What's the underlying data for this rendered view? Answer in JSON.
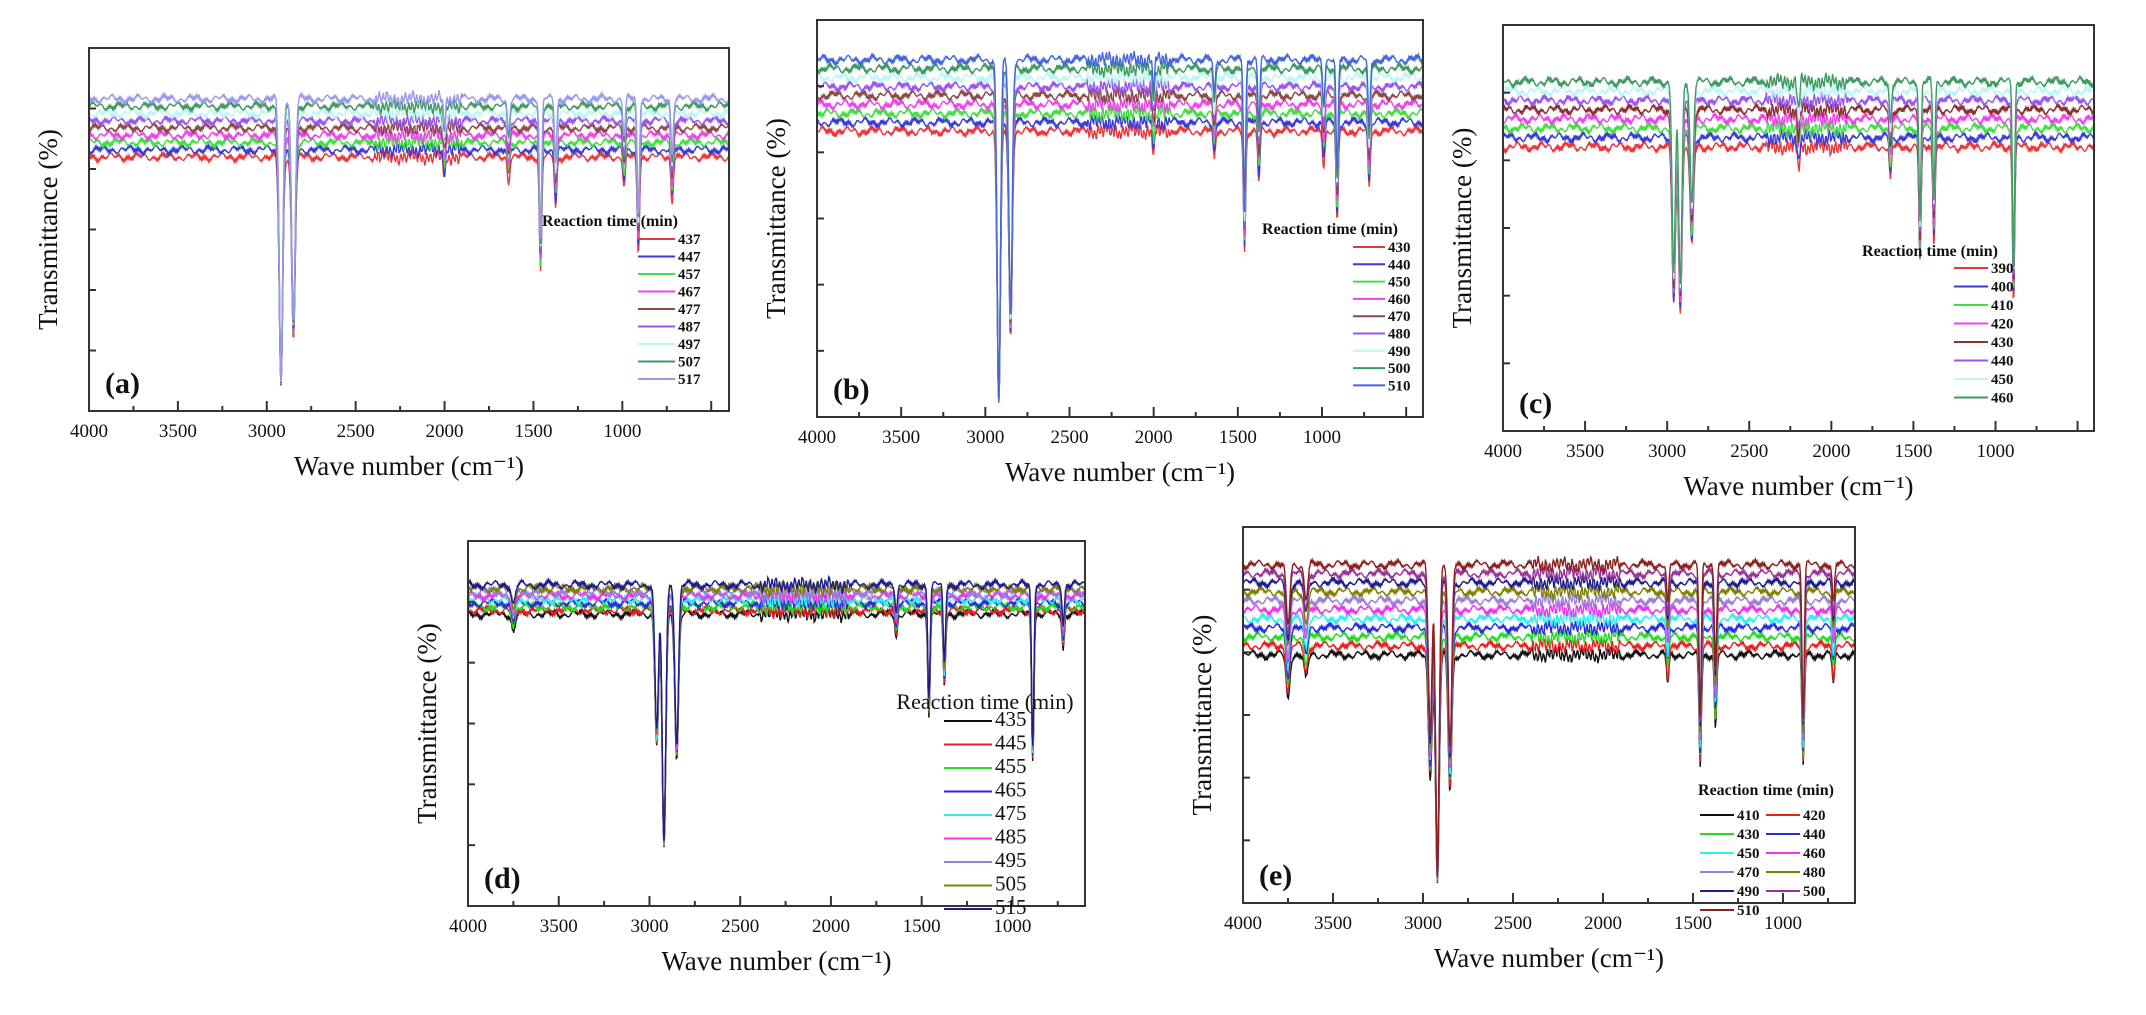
{
  "chart_data": [
    {
      "type": "line",
      "panel_label": "(a)",
      "xlabel": "Wave number (cm⁻¹)",
      "ylabel": "Transmittance (%)",
      "xlim": [
        4000,
        400
      ],
      "x_ticks": [
        4000,
        3500,
        3000,
        2500,
        2000,
        1500,
        1000
      ],
      "y_tick_labels": "none",
      "grid": false,
      "legend_title": "Reaction time (min)",
      "legend_position": "right",
      "series": [
        {
          "name": "437",
          "color": "#e8383a"
        },
        {
          "name": "447",
          "color": "#3a3ad8"
        },
        {
          "name": "457",
          "color": "#44dd44"
        },
        {
          "name": "467",
          "color": "#ee44ee"
        },
        {
          "name": "477",
          "color": "#8b4a4a"
        },
        {
          "name": "487",
          "color": "#9955ee"
        },
        {
          "name": "497",
          "color": "#bff5f5"
        },
        {
          "name": "507",
          "color": "#3f9a5f"
        },
        {
          "name": "517",
          "color": "#9999ee"
        }
      ],
      "absorption_bands": [
        {
          "wavenumber": 2920,
          "relative_depth": 0.9
        },
        {
          "wavenumber": 2850,
          "relative_depth": 0.72
        },
        {
          "wavenumber": 2000,
          "relative_depth": 0.08
        },
        {
          "wavenumber": 1640,
          "relative_depth": 0.1
        },
        {
          "wavenumber": 1460,
          "relative_depth": 0.45
        },
        {
          "wavenumber": 1375,
          "relative_depth": 0.2
        },
        {
          "wavenumber": 990,
          "relative_depth": 0.12
        },
        {
          "wavenumber": 910,
          "relative_depth": 0.38
        },
        {
          "wavenumber": 720,
          "relative_depth": 0.18
        }
      ]
    },
    {
      "type": "line",
      "panel_label": "(b)",
      "xlabel": "Wave number (cm⁻¹)",
      "ylabel": "Transmittance (%)",
      "xlim": [
        4000,
        400
      ],
      "x_ticks": [
        4000,
        3500,
        3000,
        2500,
        2000,
        1500,
        1000
      ],
      "y_tick_labels": "none",
      "grid": false,
      "legend_title": "Reaction time (min)",
      "legend_position": "right",
      "series": [
        {
          "name": "430",
          "color": "#e8383a"
        },
        {
          "name": "440",
          "color": "#3a3ad8"
        },
        {
          "name": "450",
          "color": "#44dd44"
        },
        {
          "name": "460",
          "color": "#ee44ee"
        },
        {
          "name": "470",
          "color": "#8b4a4a"
        },
        {
          "name": "480",
          "color": "#9955ee"
        },
        {
          "name": "490",
          "color": "#bff5f5"
        },
        {
          "name": "500",
          "color": "#3f9a5f"
        },
        {
          "name": "510",
          "color": "#4466dd"
        }
      ],
      "absorption_bands": [
        {
          "wavenumber": 2920,
          "relative_depth": 0.95
        },
        {
          "wavenumber": 2850,
          "relative_depth": 0.72
        },
        {
          "wavenumber": 2000,
          "relative_depth": 0.08
        },
        {
          "wavenumber": 1640,
          "relative_depth": 0.1
        },
        {
          "wavenumber": 1460,
          "relative_depth": 0.42
        },
        {
          "wavenumber": 1375,
          "relative_depth": 0.18
        },
        {
          "wavenumber": 990,
          "relative_depth": 0.12
        },
        {
          "wavenumber": 910,
          "relative_depth": 0.32
        },
        {
          "wavenumber": 720,
          "relative_depth": 0.2
        }
      ]
    },
    {
      "type": "line",
      "panel_label": "(c)",
      "xlabel": "Wave number (cm⁻¹)",
      "ylabel": "Transmittance (%)",
      "xlim": [
        4000,
        400
      ],
      "x_ticks": [
        4000,
        3500,
        3000,
        2500,
        2000,
        1500,
        1000
      ],
      "y_tick_labels": "none",
      "grid": false,
      "legend_title": "Reaction time (min)",
      "legend_position": "right",
      "series": [
        {
          "name": "390",
          "color": "#e8383a"
        },
        {
          "name": "400",
          "color": "#3a3ad8"
        },
        {
          "name": "410",
          "color": "#44dd44"
        },
        {
          "name": "420",
          "color": "#ee44ee"
        },
        {
          "name": "430",
          "color": "#8b3030"
        },
        {
          "name": "440",
          "color": "#9955ee"
        },
        {
          "name": "450",
          "color": "#bff5f5"
        },
        {
          "name": "460",
          "color": "#3f9a5f"
        }
      ],
      "absorption_bands": [
        {
          "wavenumber": 2960,
          "relative_depth": 0.55
        },
        {
          "wavenumber": 2920,
          "relative_depth": 0.58
        },
        {
          "wavenumber": 2850,
          "relative_depth": 0.35
        },
        {
          "wavenumber": 2200,
          "relative_depth": 0.08
        },
        {
          "wavenumber": 1640,
          "relative_depth": 0.12
        },
        {
          "wavenumber": 1460,
          "relative_depth": 0.4
        },
        {
          "wavenumber": 1375,
          "relative_depth": 0.34
        },
        {
          "wavenumber": 890,
          "relative_depth": 0.55
        }
      ]
    },
    {
      "type": "line",
      "panel_label": "(d)",
      "xlabel": "Wave number (cm⁻¹)",
      "ylabel": "Transmittance (%)",
      "xlim": [
        4000,
        600
      ],
      "x_ticks": [
        4000,
        3500,
        3000,
        2500,
        2000,
        1500,
        1000
      ],
      "y_tick_labels": "none",
      "grid": false,
      "legend_title": "Reaction time (min)",
      "legend_position": "right",
      "series": [
        {
          "name": "435",
          "color": "#111111"
        },
        {
          "name": "445",
          "color": "#e82020"
        },
        {
          "name": "455",
          "color": "#22dd22"
        },
        {
          "name": "465",
          "color": "#2a2add"
        },
        {
          "name": "475",
          "color": "#33eeee"
        },
        {
          "name": "485",
          "color": "#ee33ee"
        },
        {
          "name": "495",
          "color": "#9a7fd6"
        },
        {
          "name": "505",
          "color": "#808000"
        },
        {
          "name": "515",
          "color": "#1c1c8c"
        }
      ],
      "absorption_bands": [
        {
          "wavenumber": 3750,
          "relative_depth": 0.06
        },
        {
          "wavenumber": 2960,
          "relative_depth": 0.45
        },
        {
          "wavenumber": 2920,
          "relative_depth": 0.8
        },
        {
          "wavenumber": 2850,
          "relative_depth": 0.5
        },
        {
          "wavenumber": 1640,
          "relative_depth": 0.08
        },
        {
          "wavenumber": 1460,
          "relative_depth": 0.35
        },
        {
          "wavenumber": 1375,
          "relative_depth": 0.25
        },
        {
          "wavenumber": 888,
          "relative_depth": 0.5
        },
        {
          "wavenumber": 720,
          "relative_depth": 0.12
        }
      ]
    },
    {
      "type": "line",
      "panel_label": "(e)",
      "xlabel": "Wave number (cm⁻¹)",
      "ylabel": "Transmittance (%)",
      "xlim": [
        4000,
        600
      ],
      "x_ticks": [
        4000,
        3500,
        3000,
        2500,
        2000,
        1500,
        1000
      ],
      "y_tick_labels": "none",
      "grid": false,
      "legend_title": "Reaction time (min)",
      "legend_position": "right",
      "legend_columns": 2,
      "series": [
        {
          "name": "410",
          "color": "#111111"
        },
        {
          "name": "420",
          "color": "#e82020"
        },
        {
          "name": "430",
          "color": "#22dd22"
        },
        {
          "name": "440",
          "color": "#2a2add"
        },
        {
          "name": "450",
          "color": "#33eeee"
        },
        {
          "name": "460",
          "color": "#ee33ee"
        },
        {
          "name": "470",
          "color": "#9a7fd6"
        },
        {
          "name": "480",
          "color": "#808000"
        },
        {
          "name": "490",
          "color": "#1c1c8c"
        },
        {
          "name": "500",
          "color": "#993399"
        },
        {
          "name": "510",
          "color": "#8b2020"
        }
      ],
      "absorption_bands": [
        {
          "wavenumber": 3750,
          "relative_depth": 0.18
        },
        {
          "wavenumber": 3650,
          "relative_depth": 0.1
        },
        {
          "wavenumber": 2960,
          "relative_depth": 0.5
        },
        {
          "wavenumber": 2920,
          "relative_depth": 0.92
        },
        {
          "wavenumber": 2850,
          "relative_depth": 0.55
        },
        {
          "wavenumber": 1640,
          "relative_depth": 0.12
        },
        {
          "wavenumber": 1460,
          "relative_depth": 0.45
        },
        {
          "wavenumber": 1375,
          "relative_depth": 0.3
        },
        {
          "wavenumber": 888,
          "relative_depth": 0.45
        },
        {
          "wavenumber": 720,
          "relative_depth": 0.12
        }
      ]
    }
  ]
}
